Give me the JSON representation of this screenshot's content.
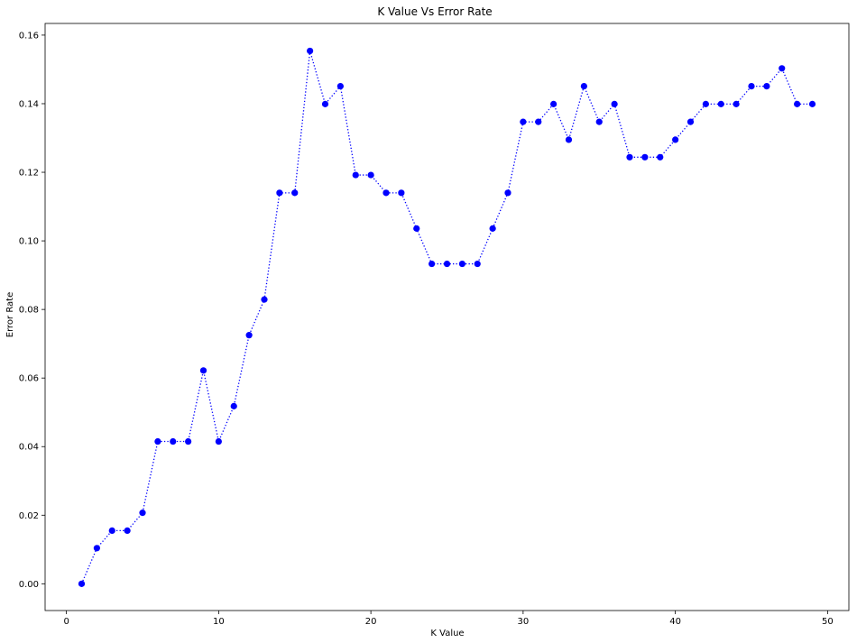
{
  "chart_data": {
    "type": "line",
    "title": "K Value Vs Error Rate",
    "xlabel": "K Value",
    "ylabel": "Error Rate",
    "xlim": [
      -1.4,
      51.4
    ],
    "ylim": [
      -0.0078,
      0.1634
    ],
    "xticks": [
      0,
      10,
      20,
      30,
      40,
      50
    ],
    "yticks": [
      0.0,
      0.02,
      0.04,
      0.06,
      0.08,
      0.1,
      0.12,
      0.14,
      0.16
    ],
    "line_color": "#0000ff",
    "marker_color": "#0000ff",
    "line_style": "dotted",
    "grid": false,
    "series": [
      {
        "x": [
          1,
          2,
          3,
          4,
          5,
          6,
          7,
          8,
          9,
          10,
          11,
          12,
          13,
          14,
          15,
          16,
          17,
          18,
          19,
          20,
          21,
          22,
          23,
          24,
          25,
          26,
          27,
          28,
          29,
          30,
          31,
          32,
          33,
          34,
          35,
          36,
          37,
          38,
          39,
          40,
          41,
          42,
          43,
          44,
          45,
          46,
          47,
          48,
          49
        ],
        "values": [
          0.0,
          0.0104,
          0.0155,
          0.0155,
          0.0207,
          0.0415,
          0.0415,
          0.0415,
          0.0622,
          0.0415,
          0.0518,
          0.0725,
          0.0829,
          0.114,
          0.114,
          0.1554,
          0.1399,
          0.1451,
          0.1192,
          0.1192,
          0.114,
          0.114,
          0.1036,
          0.0933,
          0.0933,
          0.0933,
          0.0933,
          0.1036,
          0.114,
          0.1347,
          0.1347,
          0.1399,
          0.1295,
          0.1451,
          0.1347,
          0.1399,
          0.1244,
          0.1244,
          0.1244,
          0.1295,
          0.1347,
          0.1399,
          0.1399,
          0.1399,
          0.1451,
          0.1451,
          0.1503,
          0.1399,
          0.1399
        ]
      }
    ]
  }
}
